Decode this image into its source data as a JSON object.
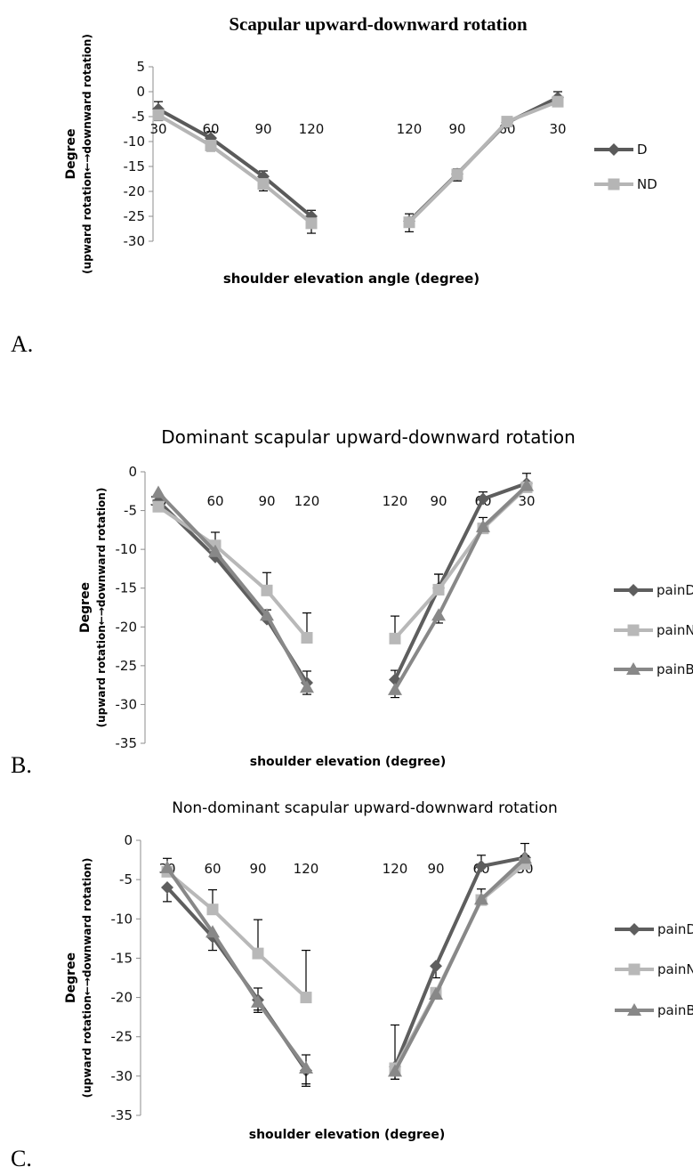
{
  "chart_data": [
    {
      "type": "line",
      "panel": "A.",
      "title": "Scapular upward-downward rotation",
      "ylabel_line1": "Degree",
      "ylabel_line2": "(upward rotation←→downward  rotation)",
      "xlabel": "shoulder elevation angle  (degree)",
      "categories": [
        "30",
        "60",
        "90",
        "120",
        "",
        "120",
        "90",
        "60",
        "30"
      ],
      "ylim": [
        -30,
        5
      ],
      "yticks": [
        5,
        0,
        -5,
        -10,
        -15,
        -20,
        -25,
        -30
      ],
      "ytick_labels": [
        "5",
        "0",
        "-5",
        "-10",
        "-15",
        "-20",
        "-25",
        "-30"
      ],
      "series": [
        {
          "name": "D",
          "color": "#5a5a5a",
          "marker": "diamond",
          "values": [
            -3.5,
            -9.3,
            -17.0,
            -25.0,
            null,
            -26.0,
            -16.5,
            -6.2,
            -1.2
          ],
          "err_up": [
            1.5,
            1.3,
            1.1,
            1.2,
            null,
            1.5,
            1.0,
            0.6,
            1.2
          ],
          "err_down": [
            0,
            0,
            0,
            0,
            null,
            0,
            0,
            0,
            0
          ]
        },
        {
          "name": "ND",
          "color": "#b5b5b5",
          "marker": "square",
          "values": [
            -4.7,
            -10.8,
            -18.5,
            -26.4,
            null,
            -26.2,
            -16.6,
            -6.0,
            -2.0
          ],
          "err_up": [
            0,
            0,
            0,
            0,
            null,
            0,
            0,
            0,
            0
          ],
          "err_down": [
            1.1,
            1.1,
            1.4,
            2.0,
            null,
            1.9,
            1.3,
            0,
            0
          ]
        }
      ]
    },
    {
      "type": "line",
      "panel": "B.",
      "title": "Dominant scapular upward-downward rotation",
      "ylabel_line1": "Degree",
      "ylabel_line2": "(upward rotation←→downward rotation)",
      "xlabel": "shoulder elevation (degree)",
      "categories": [
        "30",
        "60",
        "90",
        "120",
        "",
        "120",
        "90",
        "60",
        "30"
      ],
      "ylim": [
        -35,
        0
      ],
      "yticks": [
        0,
        -5,
        -10,
        -15,
        -20,
        -25,
        -30,
        -35
      ],
      "ytick_labels": [
        "0",
        "-5",
        "-10",
        "-15",
        "-20",
        "-25",
        "-30",
        "-35"
      ],
      "series": [
        {
          "name": "painD",
          "color": "#5e5e5e",
          "marker": "diamond",
          "values": [
            -3.8,
            -11.0,
            -19.0,
            -27.2,
            null,
            -26.8,
            -15.0,
            -3.5,
            -1.5
          ],
          "err_up": [
            0,
            0,
            1.2,
            1.5,
            null,
            1.2,
            1.8,
            0.9,
            1.3
          ],
          "err_down": [
            0,
            0,
            0,
            0,
            null,
            0,
            0,
            0,
            0
          ]
        },
        {
          "name": "painND",
          "color": "#b8b8b8",
          "marker": "square",
          "values": [
            -4.5,
            -9.5,
            -15.3,
            -21.4,
            null,
            -21.5,
            -15.2,
            -7.3,
            -2.0
          ],
          "err_up": [
            0,
            1.7,
            2.3,
            3.2,
            null,
            2.9,
            2.0,
            1.4,
            0
          ],
          "err_down": [
            0,
            0,
            0,
            0,
            null,
            0,
            0,
            0,
            0
          ]
        },
        {
          "name": "painBoth",
          "color": "#888888",
          "marker": "triangle",
          "values": [
            -2.7,
            -10.3,
            -18.5,
            -27.8,
            null,
            -28.1,
            -18.5,
            -7.1,
            -1.8
          ],
          "err_up": [
            0,
            0,
            0,
            0,
            null,
            0,
            0,
            0,
            0
          ],
          "err_down": [
            0,
            0,
            0,
            0.9,
            null,
            1.0,
            1.0,
            0,
            0
          ]
        }
      ]
    },
    {
      "type": "line",
      "panel": "C.",
      "title": "Non-dominant scapular upward-downward rotation",
      "ylabel_line1": "Degree",
      "ylabel_line2": "(upward rotation←→downward rotation)",
      "xlabel": "shoulder elevation (degree)",
      "categories": [
        "30",
        "60",
        "90",
        "120",
        "",
        "120",
        "90",
        "60",
        "30"
      ],
      "ylim": [
        -35,
        0
      ],
      "yticks": [
        0,
        -5,
        -10,
        -15,
        -20,
        -25,
        -30,
        -35
      ],
      "ytick_labels": [
        "0",
        "-5",
        "-10",
        "-15",
        "-20",
        "-25",
        "-30",
        "-35"
      ],
      "series": [
        {
          "name": "painD",
          "color": "#5e5e5e",
          "marker": "diamond",
          "values": [
            -6.0,
            -12.3,
            -20.3,
            -29.3,
            null,
            -28.8,
            -16.0,
            -3.3,
            -2.2
          ],
          "err_up": [
            0,
            0,
            1.5,
            2.0,
            null,
            5.3,
            0,
            1.4,
            1.8
          ],
          "err_down": [
            1.8,
            1.7,
            1.6,
            2.0,
            null,
            1.6,
            1.5,
            0,
            0
          ]
        },
        {
          "name": "painND",
          "color": "#b8b8b8",
          "marker": "square",
          "values": [
            -4.0,
            -8.8,
            -14.4,
            -20.0,
            null,
            -29.0,
            -19.4,
            -7.6,
            -3.0
          ],
          "err_up": [
            1.7,
            2.5,
            4.3,
            6.0,
            null,
            0,
            0,
            1.4,
            1.0
          ],
          "err_down": [
            0,
            0,
            0,
            0,
            null,
            0,
            0,
            0,
            0
          ]
        },
        {
          "name": "painBoth",
          "color": "#888888",
          "marker": "triangle",
          "values": [
            -3.5,
            -11.7,
            -20.6,
            -29.0,
            null,
            -29.4,
            -19.6,
            -7.5,
            -2.3
          ],
          "err_up": [
            0,
            0,
            0,
            0,
            null,
            0,
            0,
            0,
            0
          ],
          "err_down": [
            0,
            0,
            1.0,
            2.0,
            null,
            1.0,
            0,
            0,
            0
          ]
        }
      ]
    }
  ]
}
